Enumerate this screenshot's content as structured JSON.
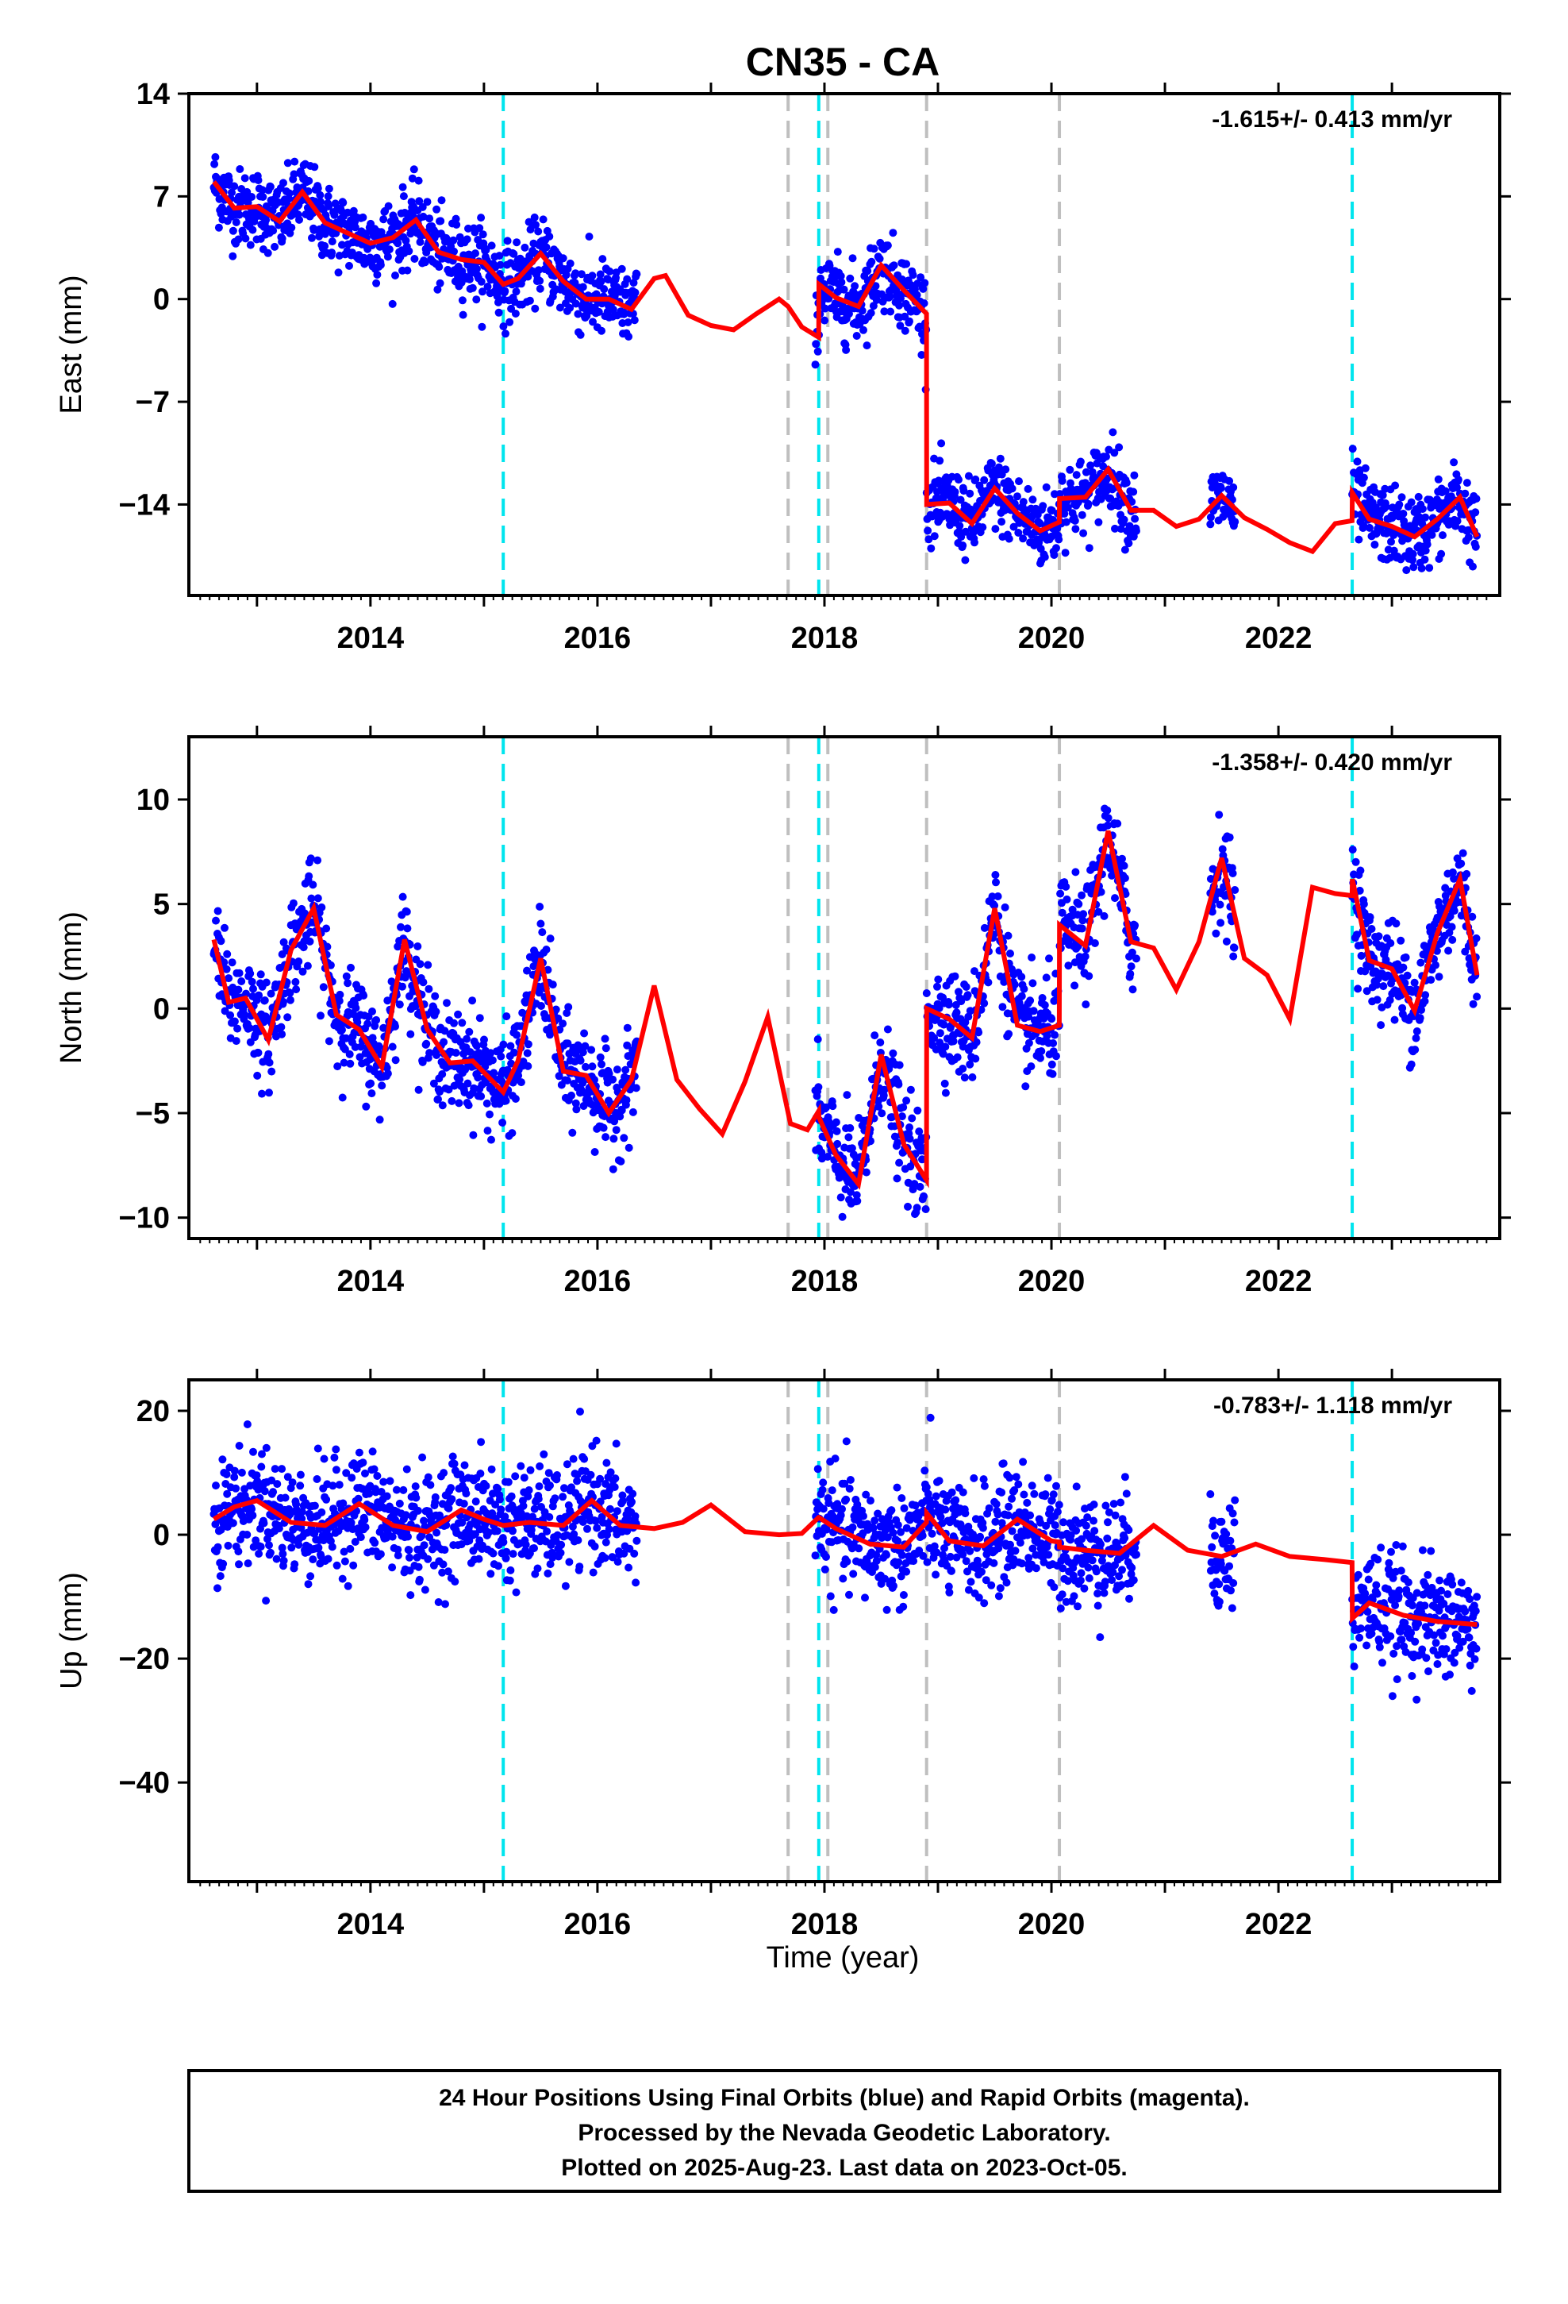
{
  "title": "CN35 - CA",
  "colors": {
    "points": "#0000ff",
    "model": "#ff0000",
    "cyan_line": "#00e5ee",
    "gray_line": "#bfbfbf",
    "frame": "#000000"
  },
  "x_axis": {
    "label": "Time (year)",
    "range": [
      2012.4,
      2023.95
    ],
    "ticks": [
      2014,
      2016,
      2018,
      2020,
      2022
    ],
    "tick_labels": [
      "2014",
      "2016",
      "2018",
      "2020",
      "2022"
    ]
  },
  "event_lines": {
    "cyan": [
      2015.17,
      2017.95,
      2022.65
    ],
    "gray": [
      2017.68,
      2018.03,
      2018.9,
      2020.07
    ]
  },
  "chart_data": [
    {
      "type": "scatter",
      "panel": "east",
      "ylabel": "East (mm)",
      "ylim": [
        -20.2,
        14
      ],
      "y_ticks": [
        14,
        7,
        0,
        -7,
        -14
      ],
      "y_tick_labels": [
        "14",
        "7",
        "0",
        "−7",
        "−14"
      ],
      "rate_label": "-1.615+/- 0.413 mm/yr",
      "data_segments": [
        [
          2012.62,
          2016.35
        ],
        [
          2017.92,
          2018.93
        ],
        [
          2018.93,
          2020.75
        ],
        [
          2021.4,
          2021.62
        ],
        [
          2022.65,
          2023.75
        ]
      ],
      "scatter_sd": 1.3,
      "model": {
        "name": "model",
        "x": [
          2012.62,
          2012.8,
          2013.0,
          2013.2,
          2013.4,
          2013.6,
          2013.8,
          2014.0,
          2014.2,
          2014.4,
          2014.6,
          2014.8,
          2015.0,
          2015.17,
          2015.3,
          2015.5,
          2015.7,
          2015.9,
          2016.1,
          2016.3,
          2016.5,
          2016.6,
          2016.8,
          2017.0,
          2017.2,
          2017.4,
          2017.6,
          2017.68,
          2017.8,
          2017.949,
          2017.951,
          2018.1,
          2018.3,
          2018.5,
          2018.7,
          2018.899,
          2018.901,
          2019.1,
          2019.3,
          2019.5,
          2019.7,
          2019.9,
          2020.069,
          2020.071,
          2020.3,
          2020.5,
          2020.7,
          2020.9,
          2021.1,
          2021.3,
          2021.5,
          2021.7,
          2021.9,
          2022.1,
          2022.3,
          2022.5,
          2022.649,
          2022.651,
          2022.8,
          2023.0,
          2023.2,
          2023.4,
          2023.6,
          2023.75
        ],
        "y": [
          8.0,
          6.2,
          6.3,
          5.3,
          7.3,
          5.2,
          4.5,
          3.8,
          4.2,
          5.4,
          3.2,
          2.7,
          2.5,
          1.0,
          1.4,
          3.1,
          1.2,
          0.0,
          0.0,
          -0.7,
          1.4,
          1.6,
          -1.1,
          -1.8,
          -2.1,
          -1.0,
          0.0,
          -0.5,
          -1.9,
          -2.6,
          1.0,
          0.1,
          -0.5,
          2.3,
          0.6,
          -1.0,
          -14.0,
          -13.9,
          -15.3,
          -12.9,
          -14.6,
          -15.8,
          -15.2,
          -13.6,
          -13.5,
          -11.6,
          -14.4,
          -14.4,
          -15.5,
          -15.0,
          -13.4,
          -14.9,
          -15.7,
          -16.6,
          -17.2,
          -15.3,
          -15.1,
          -13.2,
          -15.0,
          -15.5,
          -16.2,
          -15.0,
          -13.5,
          -16.2
        ]
      }
    },
    {
      "type": "scatter",
      "panel": "north",
      "ylabel": "North (mm)",
      "ylim": [
        -11,
        13
      ],
      "y_ticks": [
        10,
        5,
        0,
        -5,
        -10
      ],
      "y_tick_labels": [
        "10",
        "5",
        "0",
        "−5",
        "−10"
      ],
      "rate_label": "-1.358+/- 0.420 mm/yr",
      "data_segments": [
        [
          2012.62,
          2016.35
        ],
        [
          2017.92,
          2018.93
        ],
        [
          2018.93,
          2020.75
        ],
        [
          2021.4,
          2021.62
        ],
        [
          2022.65,
          2023.75
        ]
      ],
      "scatter_sd": 1.2,
      "model": {
        "name": "model",
        "x": [
          2012.62,
          2012.75,
          2012.9,
          2013.1,
          2013.3,
          2013.5,
          2013.7,
          2013.9,
          2014.1,
          2014.3,
          2014.5,
          2014.7,
          2014.9,
          2015.17,
          2015.3,
          2015.5,
          2015.7,
          2015.9,
          2016.1,
          2016.3,
          2016.5,
          2016.7,
          2016.9,
          2017.1,
          2017.3,
          2017.5,
          2017.7,
          2017.85,
          2017.949,
          2017.951,
          2018.1,
          2018.3,
          2018.5,
          2018.7,
          2018.899,
          2018.901,
          2019.1,
          2019.3,
          2019.5,
          2019.7,
          2019.9,
          2020.069,
          2020.071,
          2020.3,
          2020.5,
          2020.7,
          2020.9,
          2021.1,
          2021.3,
          2021.5,
          2021.7,
          2021.9,
          2022.1,
          2022.3,
          2022.5,
          2022.649,
          2022.651,
          2022.8,
          2023.0,
          2023.2,
          2023.4,
          2023.6,
          2023.75
        ],
        "y": [
          3.3,
          0.3,
          0.5,
          -1.5,
          2.8,
          4.8,
          -0.3,
          -1.0,
          -2.8,
          3.3,
          -1.0,
          -2.6,
          -2.5,
          -4.0,
          -2.5,
          2.4,
          -3.0,
          -3.2,
          -5.0,
          -3.4,
          1.1,
          -3.4,
          -4.8,
          -6.0,
          -3.5,
          -0.4,
          -5.5,
          -5.8,
          -4.9,
          -5.2,
          -7.0,
          -8.4,
          -2.2,
          -6.5,
          -8.2,
          0.0,
          -0.5,
          -1.4,
          4.8,
          -0.8,
          -1.1,
          -0.8,
          4.0,
          3.0,
          8.5,
          3.2,
          2.9,
          0.9,
          3.2,
          7.2,
          2.4,
          1.6,
          -0.5,
          5.8,
          5.5,
          5.4,
          6.2,
          2.3,
          1.9,
          -0.1,
          3.6,
          6.2,
          1.6
        ]
      }
    },
    {
      "type": "scatter",
      "panel": "up",
      "ylabel": "Up (mm)",
      "ylim": [
        -56,
        25
      ],
      "y_ticks": [
        20,
        0,
        -20,
        -40
      ],
      "y_tick_labels": [
        "20",
        "0",
        "−20",
        "−40"
      ],
      "rate_label": "-0.783+/- 1.118 mm/yr",
      "data_segments": [
        [
          2012.62,
          2016.35
        ],
        [
          2017.92,
          2018.93
        ],
        [
          2018.93,
          2020.75
        ],
        [
          2021.4,
          2021.62
        ],
        [
          2022.65,
          2023.75
        ]
      ],
      "scatter_sd": 4.5,
      "model": {
        "name": "model",
        "x": [
          2012.62,
          2012.8,
          2013.0,
          2013.3,
          2013.6,
          2013.9,
          2014.2,
          2014.5,
          2014.8,
          2015.0,
          2015.17,
          2015.4,
          2015.7,
          2015.95,
          2016.2,
          2016.5,
          2016.75,
          2017.0,
          2017.3,
          2017.6,
          2017.8,
          2017.949,
          2017.951,
          2018.1,
          2018.4,
          2018.7,
          2018.899,
          2018.901,
          2019.1,
          2019.4,
          2019.7,
          2020.0,
          2020.069,
          2020.071,
          2020.3,
          2020.6,
          2020.9,
          2021.2,
          2021.5,
          2021.8,
          2022.1,
          2022.4,
          2022.649,
          2022.651,
          2022.8,
          2023.1,
          2023.4,
          2023.75
        ],
        "y": [
          2.5,
          4.5,
          5.5,
          2.0,
          1.5,
          5.0,
          1.5,
          0.5,
          4.0,
          2.5,
          1.5,
          2.0,
          1.5,
          5.5,
          1.5,
          1.0,
          2.0,
          4.8,
          0.5,
          0.0,
          0.2,
          2.8,
          2.8,
          1.0,
          -1.5,
          -2.0,
          2.0,
          3.5,
          -1.0,
          -1.8,
          2.5,
          -1.0,
          -1.2,
          -2.0,
          -2.5,
          -3.0,
          1.5,
          -2.5,
          -3.5,
          -1.5,
          -3.5,
          -4.0,
          -4.5,
          -13.5,
          -11.0,
          -13.0,
          -14.0,
          -14.5
        ]
      }
    }
  ],
  "footer": {
    "line1": "24 Hour Positions Using Final Orbits (blue) and Rapid Orbits (magenta).",
    "line2": "Processed by the Nevada Geodetic Laboratory.",
    "line3": "Plotted on 2025-Aug-23. Last data on 2023-Oct-05."
  }
}
